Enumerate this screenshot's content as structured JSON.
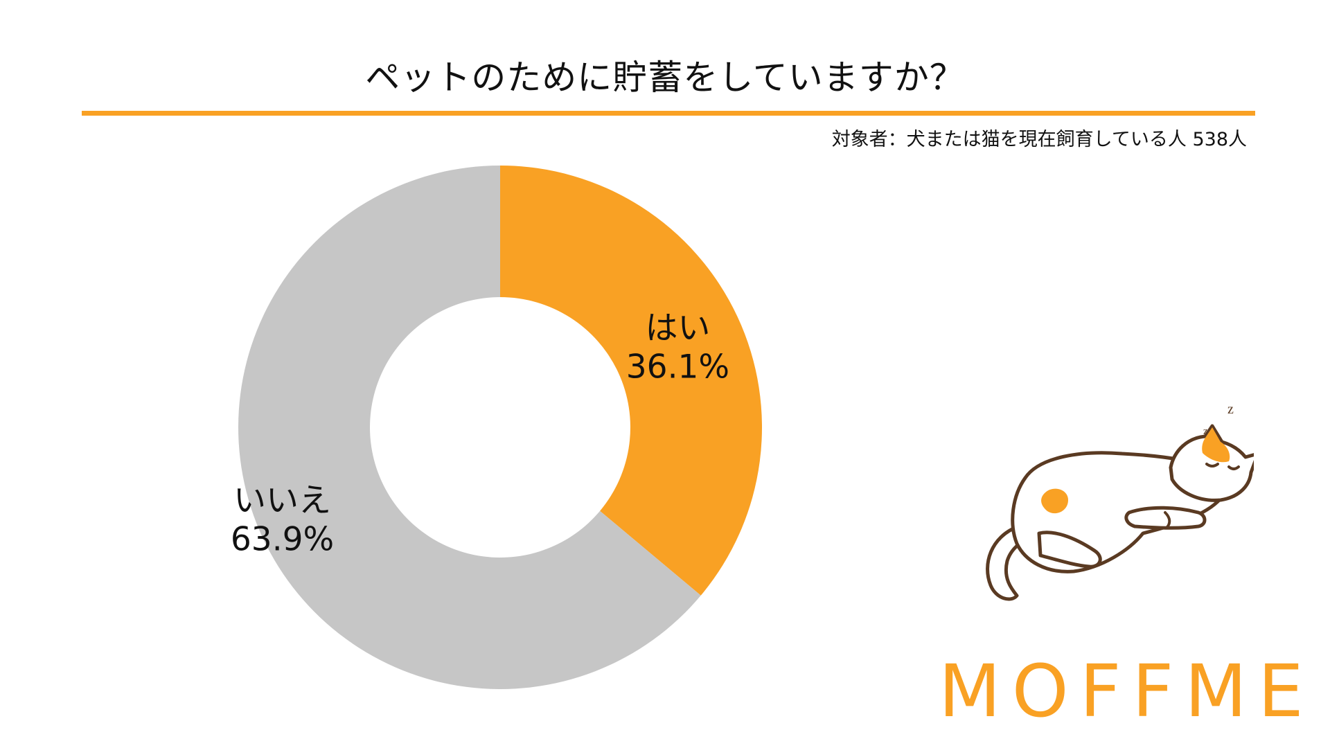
{
  "header": {
    "title": "ペットのために貯蓄をしていますか？",
    "subtitle": "対象者：犬または猫を現在飼育している人 538人"
  },
  "colors": {
    "accent": "#F9A124",
    "gray": "#C6C6C6",
    "outline": "#5A3A22"
  },
  "illustration": {
    "zz_large": "z",
    "zz_small": "z"
  },
  "logo": {
    "text": "MOFFME"
  },
  "chart_data": {
    "type": "pie",
    "donut": true,
    "categories": [
      "はい",
      "いいえ"
    ],
    "values": [
      36.1,
      63.9
    ],
    "labels": [
      "36.1%",
      "63.9%"
    ],
    "colors": [
      "#F9A124",
      "#C6C6C6"
    ],
    "start": "top",
    "direction": "clockwise"
  }
}
